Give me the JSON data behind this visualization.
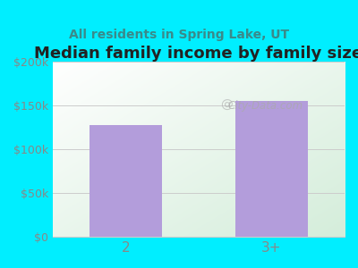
{
  "title": "Median family income by family size",
  "subtitle": "All residents in Spring Lake, UT",
  "categories": [
    "2",
    "3+"
  ],
  "values": [
    128000,
    155000
  ],
  "bar_color": "#b39ddb",
  "background_color": "#00eeff",
  "ylim": [
    0,
    200000
  ],
  "yticks": [
    0,
    50000,
    100000,
    150000,
    200000
  ],
  "ytick_labels": [
    "$0",
    "$50k",
    "$100k",
    "$150k",
    "$200k"
  ],
  "title_fontsize": 13,
  "subtitle_fontsize": 10,
  "title_color": "#222222",
  "subtitle_color": "#3a8a8a",
  "tick_color": "#888888",
  "watermark": "City-Data.com",
  "bar_width": 0.5
}
